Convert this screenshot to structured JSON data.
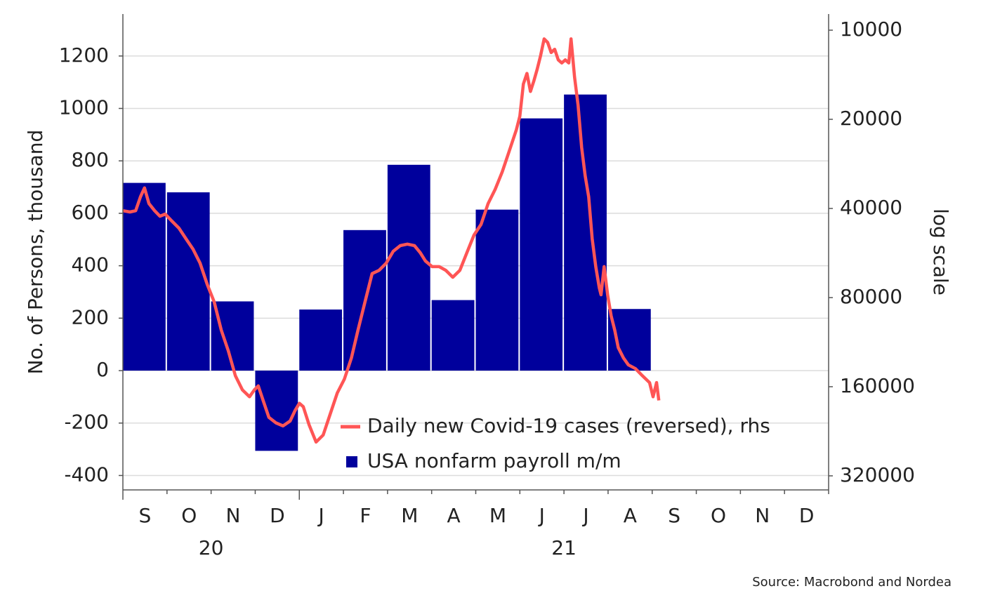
{
  "chart_data": {
    "type": "bar",
    "source": "Source: Macrobond and Nordea",
    "ylabel": "No. of Persons, thousand",
    "y2label": "log scale",
    "categories": [
      "S",
      "O",
      "N",
      "D",
      "J",
      "F",
      "M",
      "A",
      "M",
      "J",
      "J",
      "A",
      "S",
      "O",
      "N",
      "D"
    ],
    "x_group_labels": [
      "20",
      "21"
    ],
    "xlim": [
      0,
      16
    ],
    "ylim": [
      -455,
      1360
    ],
    "yticks": [
      -400,
      -200,
      0,
      200,
      400,
      600,
      800,
      1000,
      1200
    ],
    "y2lim": [
      8820,
      357000
    ],
    "y2ticks": [
      10000,
      20000,
      40000,
      80000,
      160000,
      320000
    ],
    "y2_log": true,
    "y2_reversed": true,
    "grid": true,
    "legend": "lower-center",
    "series": [
      {
        "name": "Daily new Covid-19 cases (reversed), rhs",
        "type": "line",
        "color": "#ff5555",
        "axis": "y2",
        "x": [
          0,
          0.16,
          0.29,
          0.4,
          0.49,
          0.59,
          0.72,
          0.84,
          0.96,
          1.11,
          1.27,
          1.43,
          1.59,
          1.75,
          1.91,
          2.07,
          2.23,
          2.39,
          2.55,
          2.71,
          2.87,
          2.98,
          3.07,
          3.18,
          3.31,
          3.47,
          3.63,
          3.79,
          3.9,
          4.0,
          4.09,
          4.22,
          4.38,
          4.54,
          4.7,
          4.86,
          5.02,
          5.18,
          5.33,
          5.49,
          5.65,
          5.81,
          5.97,
          6.13,
          6.29,
          6.45,
          6.61,
          6.74,
          6.86,
          7.01,
          7.17,
          7.32,
          7.48,
          7.64,
          7.8,
          7.96,
          8.12,
          8.28,
          8.44,
          8.6,
          8.76,
          8.92,
          9.0,
          9.08,
          9.16,
          9.24,
          9.32,
          9.39,
          9.47,
          9.55,
          9.63,
          9.71,
          9.79,
          9.87,
          9.95,
          10.03,
          10.11,
          10.16,
          10.24,
          10.32,
          10.4,
          10.48,
          10.56,
          10.64,
          10.72,
          10.8,
          10.84,
          10.91,
          10.99,
          11.07,
          11.15,
          11.23,
          11.35,
          11.46,
          11.62,
          11.78,
          11.94,
          12.02,
          12.1,
          12.15
        ],
        "values": [
          40700,
          41100,
          40700,
          36500,
          34100,
          38500,
          40700,
          42500,
          41800,
          44100,
          46600,
          50600,
          54900,
          61200,
          72100,
          82700,
          103000,
          121000,
          147000,
          164000,
          173000,
          164000,
          159000,
          178000,
          203000,
          212000,
          217000,
          209000,
          193000,
          182000,
          187000,
          215000,
          246000,
          233000,
          198000,
          168000,
          151000,
          128000,
          103000,
          82700,
          66400,
          64700,
          61200,
          55800,
          53400,
          52800,
          53400,
          56400,
          60200,
          62900,
          62900,
          64700,
          68300,
          64700,
          56400,
          49200,
          45300,
          38500,
          34500,
          30100,
          25600,
          21700,
          19500,
          15200,
          14000,
          16100,
          14800,
          13600,
          12200,
          10700,
          11000,
          11900,
          11600,
          12600,
          12900,
          12600,
          12900,
          10700,
          14400,
          17900,
          24900,
          31000,
          36500,
          50600,
          62900,
          74100,
          78300,
          62900,
          78300,
          92200,
          103000,
          118000,
          128000,
          135000,
          139000,
          147000,
          155000,
          173000,
          155000,
          178000
        ]
      },
      {
        "name": "USA nonfarm payroll m/m",
        "type": "bar",
        "color": "#00009c",
        "values": [
          716,
          680,
          264,
          -306,
          233,
          536,
          785,
          269,
          614,
          962,
          1053,
          235,
          null,
          null,
          null,
          null
        ]
      }
    ]
  }
}
